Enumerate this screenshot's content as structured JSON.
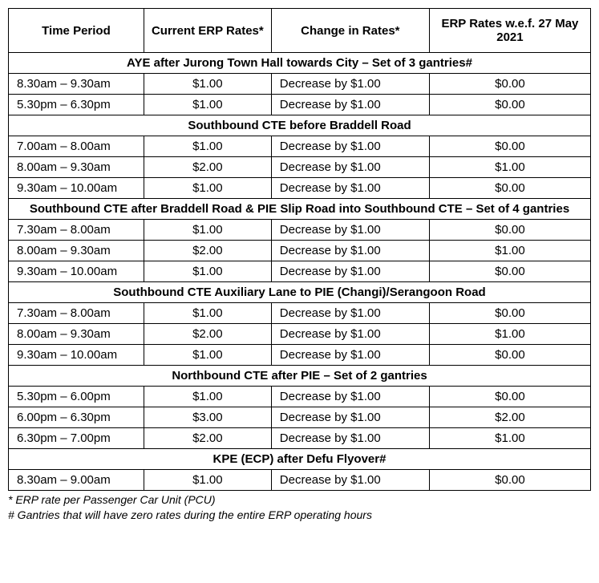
{
  "headers": {
    "time": "Time Period",
    "current": "Current ERP Rates*",
    "change": "Change in Rates*",
    "new": "ERP Rates w.e.f. 27 May 2021"
  },
  "sections": [
    {
      "title": "AYE after Jurong Town Hall towards City – Set of 3 gantries#",
      "rows": [
        {
          "time": "8.30am – 9.30am",
          "current": "$1.00",
          "change": "Decrease by $1.00",
          "new": "$0.00"
        },
        {
          "time": "5.30pm – 6.30pm",
          "current": "$1.00",
          "change": "Decrease by $1.00",
          "new": "$0.00"
        }
      ]
    },
    {
      "title": "Southbound CTE before Braddell Road",
      "rows": [
        {
          "time": "7.00am – 8.00am",
          "current": "$1.00",
          "change": "Decrease by $1.00",
          "new": "$0.00"
        },
        {
          "time": "8.00am – 9.30am",
          "current": "$2.00",
          "change": "Decrease by $1.00",
          "new": "$1.00"
        },
        {
          "time": "9.30am – 10.00am",
          "current": "$1.00",
          "change": "Decrease by $1.00",
          "new": "$0.00"
        }
      ]
    },
    {
      "title": "Southbound CTE after Braddell Road & PIE Slip Road into Southbound CTE – Set of 4 gantries",
      "rows": [
        {
          "time": "7.30am – 8.00am",
          "current": "$1.00",
          "change": "Decrease by $1.00",
          "new": "$0.00"
        },
        {
          "time": "8.00am – 9.30am",
          "current": "$2.00",
          "change": "Decrease by $1.00",
          "new": "$1.00"
        },
        {
          "time": "9.30am – 10.00am",
          "current": "$1.00",
          "change": "Decrease by $1.00",
          "new": "$0.00"
        }
      ]
    },
    {
      "title": "Southbound CTE Auxiliary Lane to PIE (Changi)/Serangoon Road",
      "rows": [
        {
          "time": "7.30am – 8.00am",
          "current": "$1.00",
          "change": "Decrease by $1.00",
          "new": "$0.00"
        },
        {
          "time": "8.00am – 9.30am",
          "current": "$2.00",
          "change": "Decrease by $1.00",
          "new": "$1.00"
        },
        {
          "time": "9.30am – 10.00am",
          "current": "$1.00",
          "change": "Decrease by $1.00",
          "new": "$0.00"
        }
      ]
    },
    {
      "title": "Northbound CTE after PIE – Set of 2 gantries",
      "rows": [
        {
          "time": "5.30pm – 6.00pm",
          "current": "$1.00",
          "change": "Decrease by $1.00",
          "new": "$0.00"
        },
        {
          "time": "6.00pm – 6.30pm",
          "current": "$3.00",
          "change": "Decrease by $1.00",
          "new": "$2.00"
        },
        {
          "time": "6.30pm – 7.00pm",
          "current": "$2.00",
          "change": "Decrease by $1.00",
          "new": "$1.00"
        }
      ]
    },
    {
      "title": "KPE (ECP) after Defu Flyover#",
      "rows": [
        {
          "time": "8.30am – 9.00am",
          "current": "$1.00",
          "change": "Decrease by $1.00",
          "new": "$0.00"
        }
      ]
    }
  ],
  "footnotes": [
    "* ERP rate per Passenger Car Unit (PCU)",
    "# Gantries that will have zero rates during the entire ERP operating hours"
  ]
}
